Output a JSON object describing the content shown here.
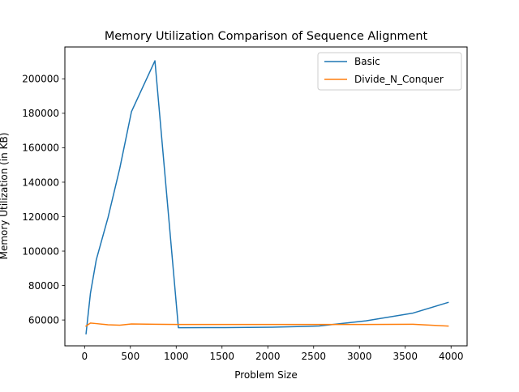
{
  "chart_data": {
    "type": "line",
    "title": "Memory Utilization Comparison of Sequence Alignment",
    "xlabel": "Problem Size",
    "ylabel": "Memory Utilization (in KB)",
    "xlim": [
      -215,
      4175
    ],
    "ylim": [
      45000,
      218500
    ],
    "xticks": [
      0,
      500,
      1000,
      1500,
      2000,
      2500,
      3000,
      3500,
      4000
    ],
    "xtick_labels": [
      "0",
      "500",
      "1000",
      "1500",
      "2000",
      "2500",
      "3000",
      "3500",
      "4000"
    ],
    "yticks": [
      60000,
      80000,
      100000,
      120000,
      140000,
      160000,
      180000,
      200000
    ],
    "ytick_labels": [
      "60000",
      "80000",
      "100000",
      "120000",
      "140000",
      "160000",
      "180000",
      "200000"
    ],
    "legend_position": "top-right",
    "grid": false,
    "series": [
      {
        "name": "Basic",
        "color": "#1f77b4",
        "x": [
          16,
          64,
          128,
          256,
          384,
          512,
          768,
          1024,
          1536,
          2048,
          2560,
          3072,
          3584,
          3968
        ],
        "y": [
          52000,
          75500,
          95000,
          119500,
          148000,
          181000,
          210500,
          55500,
          55600,
          55800,
          56500,
          59500,
          64000,
          70200
        ]
      },
      {
        "name": "Divide_N_Conquer",
        "color": "#ff7f0e",
        "x": [
          16,
          64,
          128,
          256,
          384,
          512,
          768,
          1024,
          1536,
          2048,
          2560,
          3072,
          3584,
          3968
        ],
        "y": [
          56500,
          58200,
          57900,
          57200,
          57000,
          57700,
          57500,
          57400,
          57400,
          57400,
          57400,
          57400,
          57500,
          56500
        ]
      }
    ]
  }
}
